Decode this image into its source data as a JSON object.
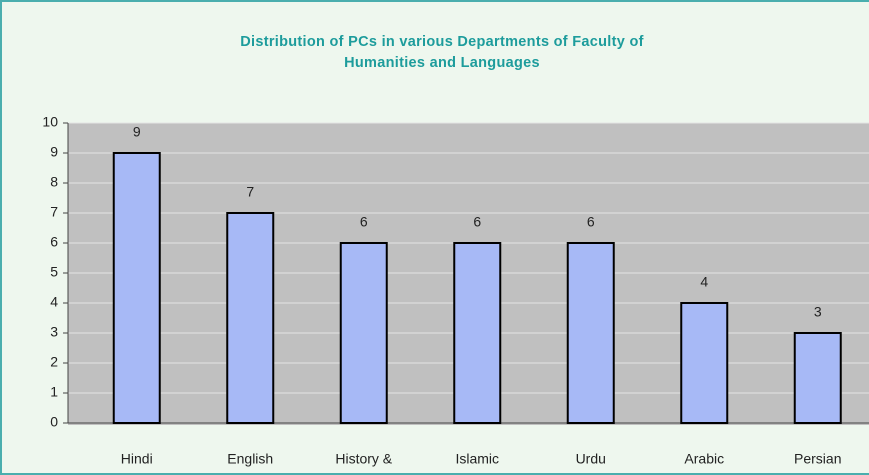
{
  "chart_data": {
    "type": "bar",
    "title": "Distribution of PCs in various Departments of Faculty of Humanities and Languages",
    "categories": [
      "Hindi",
      "English",
      "History &",
      "Islamic",
      "Urdu",
      "Arabic",
      "Persian"
    ],
    "values": [
      9,
      7,
      6,
      6,
      6,
      4,
      3
    ],
    "color": "#a7b9f6",
    "ylim": [
      0,
      10
    ],
    "yticks": [
      0,
      1,
      2,
      3,
      4,
      5,
      6,
      7,
      8,
      9,
      10
    ],
    "grid": true
  }
}
